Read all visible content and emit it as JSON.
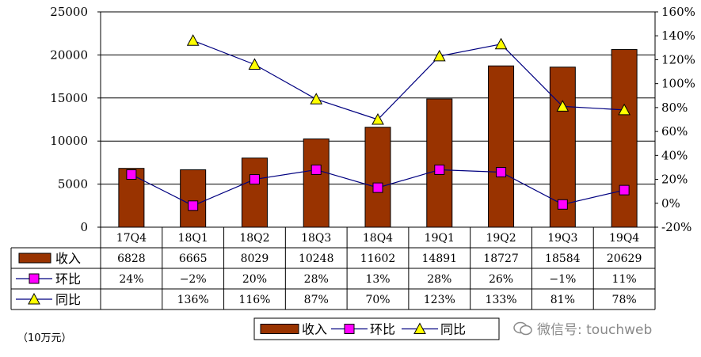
{
  "colors": {
    "revenue": "#993300",
    "qoq": "#FF00FF",
    "yoy": "#FFFF00",
    "line": "#000080"
  },
  "chart_data": {
    "type": "bar",
    "categories": [
      "17Q4",
      "18Q1",
      "18Q2",
      "18Q3",
      "18Q4",
      "19Q1",
      "19Q2",
      "19Q3",
      "19Q4"
    ],
    "left_axis": {
      "min": 0,
      "max": 25000,
      "step": 5000,
      "ticks": [
        "0",
        "5000",
        "10000",
        "15000",
        "20000",
        "25000"
      ]
    },
    "right_axis": {
      "min": -20,
      "max": 160,
      "step": 20,
      "ticks": [
        "-20%",
        "0%",
        "20%",
        "40%",
        "60%",
        "80%",
        "100%",
        "120%",
        "140%",
        "160%"
      ]
    },
    "series": [
      {
        "name": "收入",
        "type": "bar",
        "axis": "left",
        "values": [
          6828,
          6665,
          8029,
          10248,
          11602,
          14891,
          18727,
          18584,
          20629
        ],
        "labels": [
          "6828",
          "6665",
          "8029",
          "10248",
          "11602",
          "14891",
          "18727",
          "18584",
          "20629"
        ]
      },
      {
        "name": "环比",
        "type": "line",
        "marker": "square",
        "axis": "right",
        "values": [
          24,
          -2,
          20,
          28,
          13,
          28,
          26,
          -1,
          11
        ],
        "labels": [
          "24%",
          "−2%",
          "20%",
          "28%",
          "13%",
          "28%",
          "26%",
          "−1%",
          "11%"
        ]
      },
      {
        "name": "同比",
        "type": "line",
        "marker": "triangle",
        "axis": "right",
        "values": [
          null,
          136,
          116,
          87,
          70,
          123,
          133,
          81,
          78
        ],
        "labels": [
          "",
          "136%",
          "116%",
          "87%",
          "70%",
          "123%",
          "133%",
          "81%",
          "78%"
        ]
      }
    ],
    "grid": true,
    "legend": "bottom-center"
  },
  "unit_note": "（10万元）",
  "watermark": {
    "text": "微信号: touchweb"
  }
}
